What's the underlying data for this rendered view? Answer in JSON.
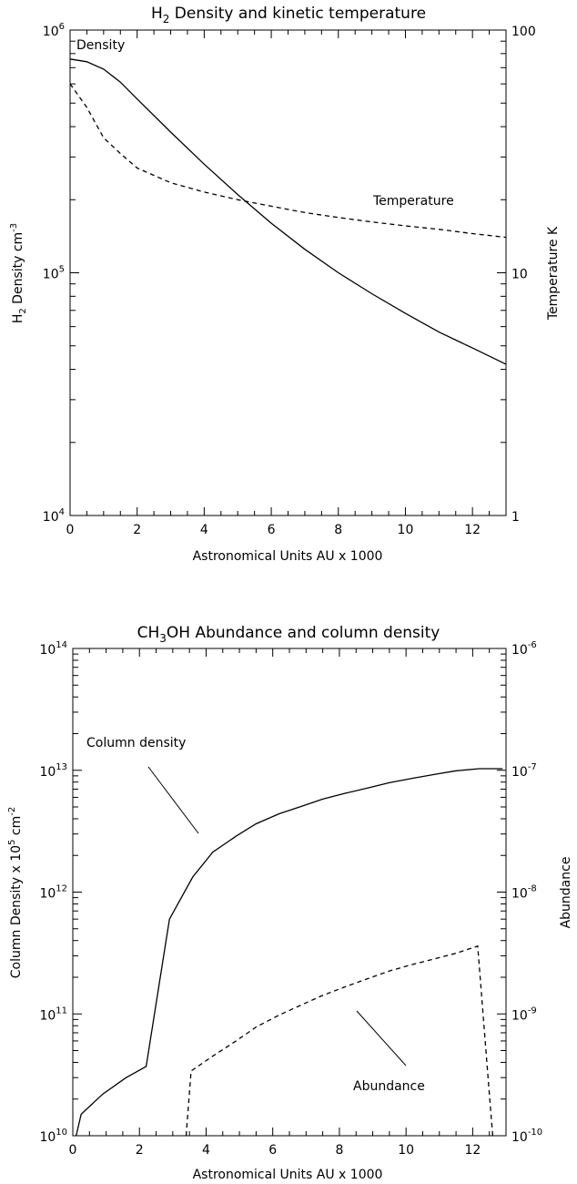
{
  "chart_data": [
    {
      "type": "line",
      "title": "H2 Density and kinetic temperature",
      "title_main": "H",
      "title_sub": "2",
      "title_rest": " Density and kinetic temperature",
      "xlabel": "Astronomical Units AU x 1000",
      "ylabel": "H2 Density cm-3",
      "ylabel_main": "H",
      "ylabel_sub": "2",
      "ylabel_rest": " Density cm",
      "ylabel_sup": "-3",
      "y2label": "Temperature K",
      "xlim": [
        0,
        13
      ],
      "ylim": [
        10000,
        1000000
      ],
      "y2lim": [
        1,
        100
      ],
      "yscale": "log",
      "y2scale": "log",
      "x_ticks": [
        "0",
        "2",
        "4",
        "6",
        "8",
        "10",
        "12"
      ],
      "y_ticks": [
        {
          "base": "10",
          "exp": "4"
        },
        {
          "base": "10",
          "exp": "5"
        },
        {
          "base": "10",
          "exp": "6"
        }
      ],
      "y2_ticks": [
        "1",
        "10",
        "100"
      ],
      "series": [
        {
          "name": "Density",
          "axis": "left",
          "style": "solid",
          "x": [
            0,
            0.5,
            1,
            1.5,
            2,
            3,
            4,
            5,
            6,
            7,
            8,
            9,
            10,
            11,
            12,
            13
          ],
          "y": [
            760000,
            740000,
            690000,
            610000,
            520000,
            380000,
            280000,
            210000,
            160000,
            125000,
            100000,
            82000,
            68000,
            57000,
            49000,
            42000
          ]
        },
        {
          "name": "Temperature",
          "axis": "right",
          "style": "dashed",
          "x": [
            0,
            0.5,
            1,
            1.5,
            2,
            3,
            4,
            5,
            6,
            7,
            8,
            9,
            10,
            11,
            12,
            13
          ],
          "y": [
            60,
            48,
            36,
            31,
            27,
            23.5,
            21.5,
            20,
            18.8,
            17.7,
            16.9,
            16.2,
            15.6,
            15.1,
            14.5,
            14
          ]
        }
      ],
      "annotations": [
        "Density",
        "Temperature"
      ]
    },
    {
      "type": "line",
      "title": "CH3OH Abundance and column density",
      "title_main": "CH",
      "title_sub": "3",
      "title_rest": "OH Abundance and column density",
      "xlabel": "Astronomical Units AU x 1000",
      "ylabel": "Column Density x 10^5 cm^-2",
      "ylabel_a": "Column Density x 10",
      "ylabel_sup1": "5",
      "ylabel_b": " cm",
      "ylabel_sup2": "-2",
      "y2label": "Abundance",
      "xlim": [
        0,
        13
      ],
      "ylim": [
        10000000000,
        100000000000000
      ],
      "y2lim": [
        1e-10,
        1e-06
      ],
      "yscale": "log",
      "y2scale": "log",
      "x_ticks": [
        "0",
        "2",
        "4",
        "6",
        "8",
        "10",
        "12"
      ],
      "y_ticks": [
        {
          "base": "10",
          "exp": "10"
        },
        {
          "base": "10",
          "exp": "11"
        },
        {
          "base": "10",
          "exp": "12"
        },
        {
          "base": "10",
          "exp": "13"
        },
        {
          "base": "10",
          "exp": "14"
        }
      ],
      "y2_ticks": [
        {
          "base": "10",
          "exp": "-10"
        },
        {
          "base": "10",
          "exp": "-9"
        },
        {
          "base": "10",
          "exp": "-8"
        },
        {
          "base": "10",
          "exp": "-7"
        },
        {
          "base": "10",
          "exp": "-6"
        }
      ],
      "series": [
        {
          "name": "Column density",
          "axis": "left",
          "style": "solid",
          "x": [
            0.1,
            0.25,
            0.9,
            1.6,
            2.2,
            2.9,
            3.6,
            4.2,
            4.9,
            5.5,
            6.2,
            6.9,
            7.5,
            8.2,
            8.9,
            9.5,
            10.2,
            10.9,
            11.5,
            12.2,
            12.9
          ],
          "y": [
            10000000000,
            15000000000,
            22000000000,
            30000000000,
            37000000000,
            600000000000,
            1330000000000,
            2130000000000,
            2880000000000,
            3640000000000,
            4400000000000,
            5100000000000,
            5800000000000,
            6500000000000,
            7200000000000,
            7900000000000,
            8600000000000,
            9300000000000,
            9900000000000,
            10300000000000,
            10300000000000
          ]
        },
        {
          "name": "Abundance",
          "axis": "right",
          "style": "dashed",
          "x": [
            3.4,
            3.55,
            4.2,
            4.9,
            5.5,
            6.2,
            6.9,
            7.5,
            8.2,
            8.9,
            9.5,
            10.2,
            10.9,
            11.5,
            12.15,
            12.5,
            12.6
          ],
          "y": [
            1e-10,
            3.4e-10,
            4.5e-10,
            6e-10,
            7.8e-10,
            9.8e-10,
            1.2e-09,
            1.42e-09,
            1.68e-09,
            1.97e-09,
            2.25e-09,
            2.55e-09,
            2.85e-09,
            3.15e-09,
            3.6e-09,
            2.2e-10,
            1e-10
          ]
        }
      ],
      "annotations": [
        "Column density",
        "Abundance"
      ]
    }
  ]
}
